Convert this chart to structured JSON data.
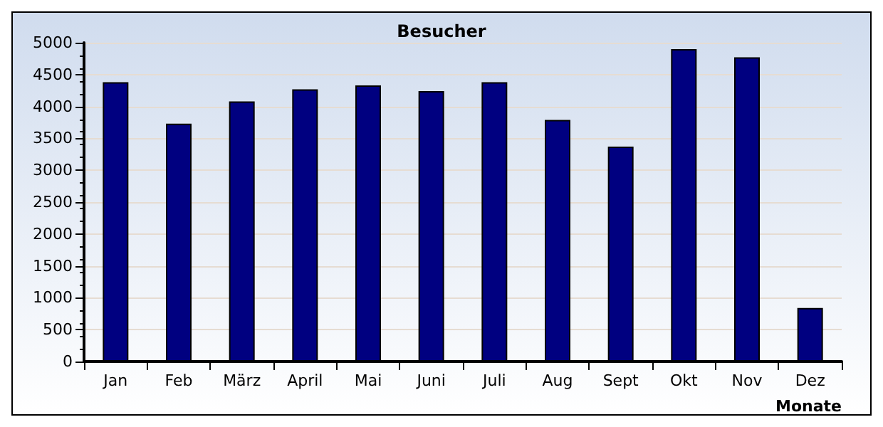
{
  "chart_data": {
    "type": "bar",
    "title": "Besucher",
    "xlabel": "Monate",
    "categories": [
      "Jan",
      "Feb",
      "März",
      "April",
      "Mai",
      "Juni",
      "Juli",
      "Aug",
      "Sept",
      "Okt",
      "Nov",
      "Dez"
    ],
    "values": [
      4380,
      3730,
      4080,
      4270,
      4330,
      4240,
      4380,
      3790,
      3370,
      4900,
      4770,
      840
    ],
    "color": "#000080",
    "ylim": [
      0,
      5000
    ],
    "yticks": [
      0,
      500,
      1000,
      1500,
      2000,
      2500,
      3000,
      3500,
      4000,
      4500,
      5000
    ],
    "grid": "y"
  }
}
